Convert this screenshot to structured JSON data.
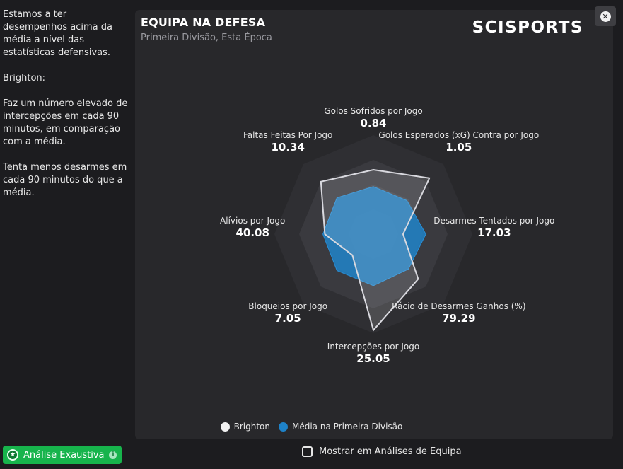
{
  "sidebar": {
    "paragraphs": [
      "Estamos a ter desempenhos acima da média a nível das estatísticas defensivas.",
      "Brighton:",
      "Faz um número elevado de intercepções em cada 90 minutos, em comparação com a média.",
      "Tenta menos desarmes em cada 90 minutos do que a média."
    ],
    "analysis_button_label": "Análise Exaustiva"
  },
  "card": {
    "title": "EQUIPA NA DEFESA",
    "subtitle": "Primeira Divisão, Esta Época",
    "brand": "SCISPORTS"
  },
  "close_icon": "close-icon",
  "chart_data": {
    "type": "radar",
    "axes": [
      {
        "name": "Golos Sofridos por Jogo",
        "value": "0.84"
      },
      {
        "name": "Golos Esperados (xG) Contra por Jogo",
        "value": "1.05"
      },
      {
        "name": "Desarmes Tentados por Jogo",
        "value": "17.03"
      },
      {
        "name": "Rácio de Desarmes Ganhos (%)",
        "value": "79.29"
      },
      {
        "name": "Intercepções por Jogo",
        "value": "25.05"
      },
      {
        "name": "Bloqueios por Jogo",
        "value": "7.05"
      },
      {
        "name": "Alívios por Jogo",
        "value": "40.08"
      },
      {
        "name": "Faltas Feitas Por Jogo",
        "value": "10.34"
      }
    ],
    "series": [
      {
        "name": "Brighton",
        "color": "#d9d9df",
        "r": [
          0.65,
          0.8,
          0.3,
          0.64,
          0.97,
          0.3,
          0.49,
          0.75
        ]
      },
      {
        "name": "Média na Primeira Divisão",
        "color": "#1e82c8",
        "r": [
          0.48,
          0.48,
          0.53,
          0.5,
          0.52,
          0.52,
          0.51,
          0.52
        ]
      }
    ],
    "grid_levels": 4
  },
  "legend": {
    "brighton": "Brighton",
    "average": "Média na Primeira Divisão"
  },
  "footer": {
    "show_in_team_analysis": "Mostrar em Análises de Equipa"
  }
}
